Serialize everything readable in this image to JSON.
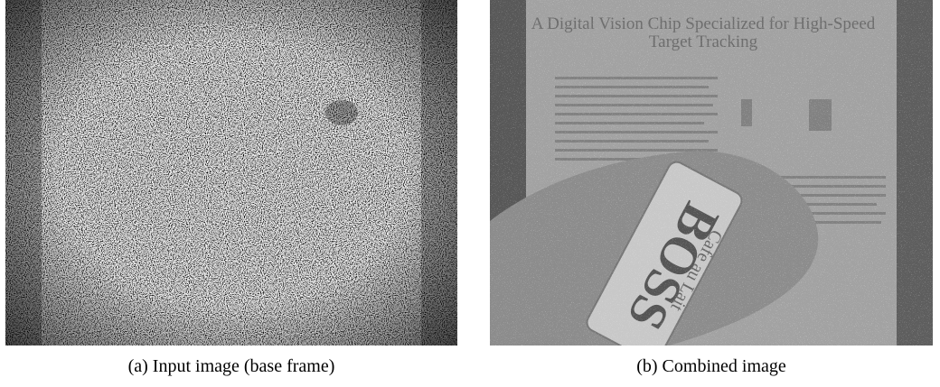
{
  "figure": {
    "panels": [
      {
        "caption": "(a) Input image (base frame)"
      },
      {
        "caption": "(b) Combined image",
        "image_text": {
          "title_line1": "A Digital Vision Chip Specialized for High-Speed",
          "title_line2": "Target Tracking",
          "can_brand": "BOSS",
          "can_flavor": "Cafe au Lait"
        }
      }
    ]
  }
}
